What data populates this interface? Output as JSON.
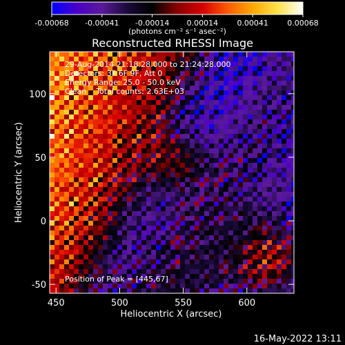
{
  "chart_data": {
    "type": "heatmap",
    "title": "Reconstructed RHESSI Image",
    "xlabel": "Heliocentric X (arcsec)",
    "ylabel": "Heliocentric Y (arcsec)",
    "xlim": [
      445,
      637
    ],
    "ylim": [
      -57,
      133
    ],
    "x_ticks": [
      450,
      500,
      550,
      600
    ],
    "y_ticks": [
      -50,
      0,
      50,
      100
    ],
    "colorbar": {
      "min": -0.00068,
      "max": 0.00068,
      "ticks": [
        "-0.00068",
        "-0.00041",
        "-0.00014",
        "0.00014",
        "0.00041",
        "0.00068"
      ],
      "unit_label": "(photons cm⁻² s⁻¹ asec⁻²)",
      "colors": [
        "#0000ff",
        "#4a00c8",
        "#5a1a9a",
        "#1a0a3a",
        "#000000",
        "#8a0000",
        "#d40000",
        "#ff5a00",
        "#ffa800",
        "#ffe24a",
        "#ffffff"
      ]
    },
    "annotations": [
      "29-Aug-2014 21:18:28.000 to 21:24:28.000",
      "Detectors: 3F 6F 9F, Att 0",
      "Energy Range: 25.0 - 50.0 keV",
      "Clean    Total counts: 2.63E+03"
    ],
    "peak_label": "Position of Peak = [445,67]",
    "peak": [
      445,
      67
    ],
    "grid": false
  },
  "footer": {
    "timestamp": "16-May-2022 13:11"
  }
}
